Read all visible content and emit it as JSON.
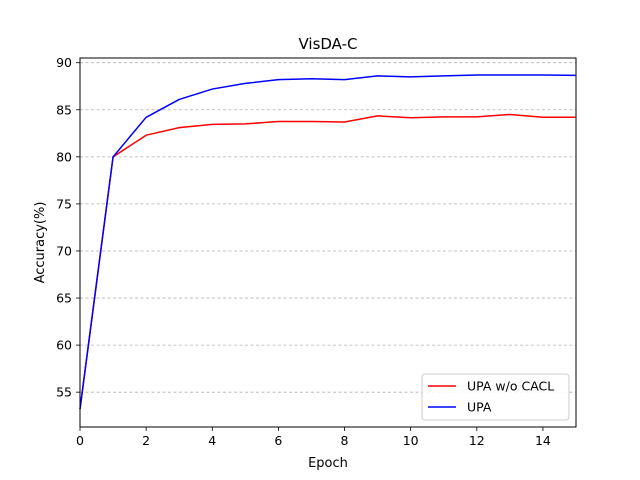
{
  "chart_data": {
    "type": "line",
    "title": "VisDA-C",
    "xlabel": "Epoch",
    "ylabel": "Accuracy(%)",
    "xlim": [
      0,
      15
    ],
    "ylim": [
      51.3,
      90.5
    ],
    "xticks": [
      0,
      2,
      4,
      6,
      8,
      10,
      12,
      14
    ],
    "yticks": [
      55,
      60,
      65,
      70,
      75,
      80,
      85,
      90
    ],
    "grid": "horizontal-dashed",
    "legend_position": "lower-right",
    "x": [
      0,
      1,
      2,
      3,
      4,
      5,
      6,
      7,
      8,
      9,
      10,
      11,
      12,
      13,
      14,
      15
    ],
    "series": [
      {
        "name": "UPA w/o CACL",
        "color": "#ff0000",
        "values": [
          53.2,
          80.0,
          82.3,
          83.1,
          83.45,
          83.5,
          83.75,
          83.75,
          83.7,
          84.35,
          84.15,
          84.25,
          84.25,
          84.5,
          84.2,
          84.2
        ]
      },
      {
        "name": "UPA",
        "color": "#0000ff",
        "values": [
          53.2,
          80.0,
          84.2,
          86.1,
          87.2,
          87.8,
          88.2,
          88.3,
          88.2,
          88.6,
          88.5,
          88.6,
          88.7,
          88.7,
          88.7,
          88.65
        ]
      }
    ]
  }
}
